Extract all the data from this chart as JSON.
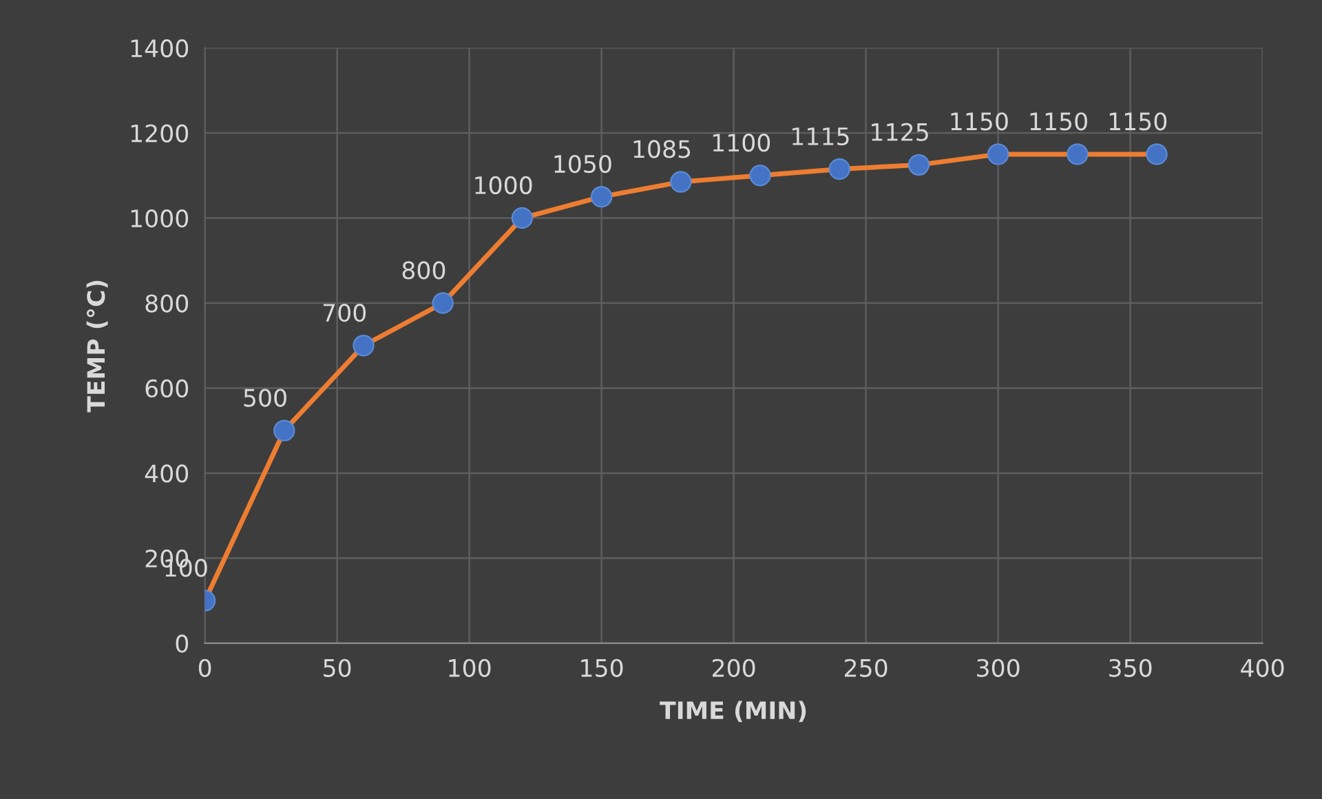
{
  "chart_data": {
    "type": "line",
    "xlabel": "TIME (MIN)",
    "ylabel": "TEMP (°C)",
    "x": [
      0,
      30,
      60,
      90,
      120,
      150,
      180,
      210,
      240,
      270,
      300,
      330,
      360
    ],
    "series": [
      {
        "color": "#ed7d31",
        "colors": [
          "#4472c4",
          "#4472c4",
          "#4472c4",
          "#4472c4",
          "#4472c4",
          "#4472c4",
          "#4472c4",
          "#4472c4",
          "#4472c4",
          "#4472c4",
          "#4472c4",
          "#4472c4",
          "#4472c4"
        ],
        "values": [
          100,
          500,
          700,
          800,
          1000,
          1050,
          1085,
          1100,
          1115,
          1125,
          1150,
          1150,
          1150
        ]
      }
    ],
    "xlim": [
      0,
      400
    ],
    "xticks": [
      0,
      50,
      100,
      150,
      200,
      250,
      300,
      350,
      400
    ],
    "ylim": [
      0,
      1400
    ],
    "yticks": [
      0,
      200,
      400,
      600,
      800,
      1000,
      1200,
      1400
    ],
    "grid": true,
    "marker": "circle",
    "line_style": "solid",
    "data_labels": true,
    "legend": false
  }
}
